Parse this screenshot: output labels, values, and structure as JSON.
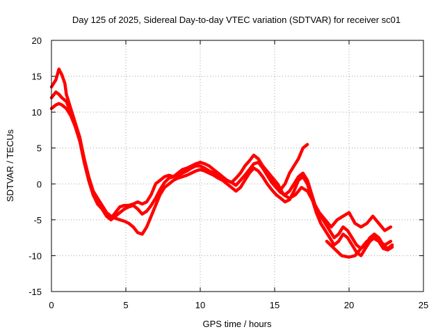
{
  "chart_data": {
    "type": "line",
    "title": "Day 125 of 2025, Sidereal Day-to-day VTEC variation (SDTVAR) for receiver sc01",
    "xlabel": "GPS time / hours",
    "ylabel": "SDTVAR / TECUs",
    "xlim": [
      0,
      25
    ],
    "ylim": [
      -15,
      20
    ],
    "xticks": [
      0,
      5,
      10,
      15,
      20,
      25
    ],
    "yticks": [
      -15,
      -10,
      -5,
      0,
      5,
      10,
      15,
      20
    ],
    "xtick_labels": [
      "0",
      "5",
      "10",
      "15",
      "20",
      "25"
    ],
    "ytick_labels": [
      "-15",
      "-10",
      "-5",
      "0",
      "5",
      "10",
      "15",
      "20"
    ],
    "grid": true,
    "legend": "none",
    "series_color": "#ff0000",
    "series": [
      {
        "name": "track-1",
        "x": [
          0.0,
          0.3,
          0.5,
          0.7,
          0.9,
          1.0,
          1.3,
          1.6,
          1.9,
          2.2,
          2.5,
          2.8,
          3.1,
          3.4,
          3.7,
          4.0,
          4.3,
          4.6,
          4.9,
          5.2,
          5.5,
          5.8,
          6.1,
          6.4,
          6.7,
          7.0,
          7.3,
          7.6,
          7.9,
          8.2,
          8.5,
          8.8,
          9.1,
          9.4,
          9.7,
          10.0,
          10.3,
          10.6,
          10.9,
          11.2,
          11.5,
          11.8,
          12.1,
          12.4,
          12.7,
          13.0,
          13.3,
          13.6,
          13.9,
          14.2,
          14.5,
          14.8,
          15.1,
          15.4,
          15.7,
          16.0,
          16.3,
          16.6,
          16.9,
          17.2
        ],
        "y": [
          13.5,
          14.5,
          16.0,
          15.2,
          14.0,
          12.5,
          10.5,
          8.5,
          6.5,
          3.5,
          1.0,
          -1.0,
          -2.0,
          -3.0,
          -4.0,
          -4.8,
          -4.0,
          -3.2,
          -3.0,
          -3.0,
          -2.8,
          -2.5,
          -2.8,
          -2.5,
          -1.5,
          0.0,
          0.5,
          1.0,
          1.2,
          1.0,
          1.5,
          2.0,
          2.2,
          2.5,
          2.8,
          3.0,
          2.8,
          2.5,
          2.0,
          1.5,
          1.0,
          0.5,
          0.2,
          0.8,
          1.5,
          2.5,
          3.2,
          4.0,
          3.5,
          2.5,
          1.5,
          0.5,
          -0.5,
          -0.8,
          0.0,
          1.5,
          2.5,
          3.5,
          5.0,
          5.5
        ]
      },
      {
        "name": "track-2",
        "x": [
          0.0,
          0.3,
          0.5,
          0.7,
          1.0,
          1.3,
          1.6,
          1.9,
          2.2,
          2.5,
          2.8,
          3.1,
          3.4,
          3.7,
          4.0,
          4.3,
          4.6,
          4.9,
          5.2,
          5.5,
          5.8,
          6.1,
          6.4,
          6.7,
          7.0,
          7.3,
          7.6,
          7.9,
          8.2,
          8.5,
          8.8,
          9.1,
          9.4,
          9.7,
          10.0,
          10.3,
          10.6,
          10.9,
          11.2,
          11.5,
          11.8,
          12.1,
          12.4,
          12.7,
          13.0,
          13.3,
          13.6,
          13.9,
          14.2,
          14.5,
          14.8,
          15.1,
          15.4,
          15.7,
          16.0,
          16.3,
          16.6,
          16.9,
          17.2,
          17.5,
          17.8,
          18.1,
          18.4,
          18.7,
          19.0,
          19.3,
          19.6,
          19.9,
          20.2,
          20.5,
          20.8,
          21.1,
          21.4,
          21.7,
          22.0,
          22.3,
          22.6,
          22.9
        ],
        "y": [
          12.0,
          12.8,
          12.5,
          12.0,
          11.5,
          10.0,
          8.0,
          6.0,
          3.0,
          0.5,
          -1.5,
          -2.8,
          -3.5,
          -4.5,
          -5.0,
          -4.5,
          -4.0,
          -3.5,
          -3.2,
          -3.0,
          -3.5,
          -4.2,
          -3.8,
          -3.0,
          -2.0,
          -0.8,
          0.2,
          0.8,
          1.0,
          1.2,
          1.5,
          1.8,
          2.2,
          2.5,
          2.5,
          2.2,
          1.8,
          1.5,
          1.0,
          0.8,
          0.5,
          0.2,
          -0.2,
          0.5,
          1.2,
          2.0,
          2.8,
          3.0,
          2.2,
          1.2,
          0.2,
          -0.5,
          -1.2,
          -1.5,
          -1.0,
          0.0,
          1.0,
          1.5,
          0.5,
          -1.5,
          -3.5,
          -4.5,
          -5.5,
          -6.5,
          -7.5,
          -7.0,
          -6.0,
          -6.5,
          -7.5,
          -8.5,
          -9.0,
          -8.5,
          -7.5,
          -7.0,
          -7.5,
          -8.5,
          -9.0,
          -8.5
        ]
      },
      {
        "name": "track-3",
        "x": [
          0.0,
          0.3,
          0.5,
          0.7,
          1.0,
          1.3,
          1.6,
          1.9,
          2.2,
          2.5,
          2.8,
          3.1,
          3.4,
          3.7,
          4.0,
          4.3,
          4.6,
          4.9,
          5.2,
          5.5,
          5.8,
          6.1,
          6.4,
          6.7,
          7.0,
          7.3,
          7.6,
          7.9,
          8.2,
          8.5,
          8.8,
          9.1,
          9.4,
          9.7,
          10.0,
          10.3,
          10.6,
          10.9,
          11.2,
          11.5,
          11.8,
          12.1,
          12.4,
          12.7,
          13.0,
          13.3,
          13.6,
          13.9,
          14.2,
          14.5,
          14.8,
          15.1,
          15.4,
          15.7,
          16.0,
          16.3,
          16.6,
          16.9,
          17.2,
          17.5,
          17.8,
          18.1,
          18.4,
          18.7,
          19.0,
          19.3,
          19.6,
          19.9,
          20.2,
          20.5,
          20.8,
          21.1,
          21.4,
          21.7,
          22.0,
          22.3,
          22.6,
          22.9
        ],
        "y": [
          10.5,
          11.0,
          11.2,
          11.0,
          10.5,
          9.5,
          8.0,
          6.0,
          3.5,
          1.0,
          -1.0,
          -2.0,
          -3.0,
          -4.0,
          -4.5,
          -4.8,
          -5.0,
          -5.2,
          -5.5,
          -6.0,
          -6.8,
          -7.0,
          -6.0,
          -4.5,
          -3.0,
          -1.5,
          -0.5,
          0.0,
          0.5,
          0.8,
          1.0,
          1.2,
          1.5,
          1.8,
          2.0,
          1.8,
          1.5,
          1.2,
          0.8,
          0.5,
          0.0,
          -0.5,
          -1.0,
          -0.5,
          0.5,
          1.5,
          2.2,
          1.8,
          1.0,
          0.0,
          -0.8,
          -1.5,
          -2.0,
          -2.5,
          -2.2,
          -1.0,
          0.5,
          1.0,
          0.0,
          -2.0,
          -4.0,
          -5.5,
          -6.5,
          -7.5,
          -8.5,
          -8.0,
          -7.0,
          -7.5,
          -8.5,
          -9.5,
          -10.0,
          -9.0,
          -8.0,
          -7.5,
          -8.0,
          -9.0,
          -9.2,
          -8.8
        ]
      },
      {
        "name": "track-4",
        "x": [
          14.0,
          14.4,
          14.8,
          15.2,
          15.6,
          16.0,
          16.4,
          16.8,
          17.2,
          17.6,
          18.0,
          18.4,
          18.8,
          19.2,
          19.6,
          20.0,
          20.4,
          20.8,
          21.2,
          21.6,
          22.0,
          22.4,
          22.8
        ],
        "y": [
          3.0,
          2.0,
          1.0,
          0.0,
          -1.5,
          -2.0,
          -1.5,
          -0.5,
          -1.0,
          -2.5,
          -4.0,
          -5.0,
          -6.0,
          -5.0,
          -4.5,
          -4.0,
          -5.5,
          -6.0,
          -5.5,
          -4.5,
          -5.5,
          -6.5,
          -6.0
        ]
      },
      {
        "name": "track-5",
        "x": [
          18.5,
          19.0,
          19.5,
          20.0,
          20.4,
          20.8,
          21.2,
          21.6,
          22.0,
          22.4,
          22.8
        ],
        "y": [
          -8.0,
          -9.0,
          -10.0,
          -10.2,
          -10.0,
          -9.0,
          -8.0,
          -7.5,
          -8.0,
          -8.5,
          -8.0
        ]
      }
    ]
  }
}
